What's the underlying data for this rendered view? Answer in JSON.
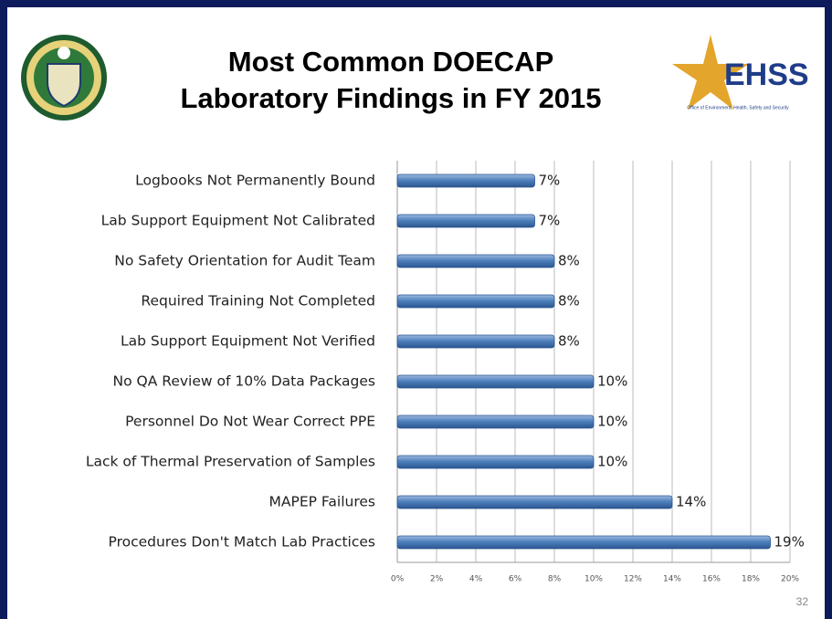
{
  "chart_data": {
    "type": "bar",
    "orientation": "horizontal",
    "title": "Most Common DOECAP Laboratory Findings in FY 2015",
    "categories": [
      "Logbooks Not Permanently Bound",
      "Lab Support Equipment Not Calibrated",
      "No Safety Orientation for Audit Team",
      "Required Training Not Completed",
      "Lab Support Equipment Not Verified",
      "No QA Review of 10% Data Packages",
      "Personnel Do Not Wear Correct PPE",
      "Lack of Thermal Preservation of Samples",
      "MAPEP Failures",
      "Procedures Don't Match Lab Practices"
    ],
    "values": [
      7,
      7,
      8,
      8,
      8,
      10,
      10,
      10,
      14,
      19
    ],
    "value_labels": [
      "7%",
      "7%",
      "8%",
      "8%",
      "8%",
      "10%",
      "10%",
      "10%",
      "14%",
      "19%"
    ],
    "color": "#4f81bd",
    "xlim": [
      0,
      20
    ],
    "xticks": [
      {
        "value": 0,
        "label": "0%"
      },
      {
        "value": 2,
        "label": "2%"
      },
      {
        "value": 4,
        "label": "4%"
      },
      {
        "value": 6,
        "label": "6%"
      },
      {
        "value": 8,
        "label": "8%"
      },
      {
        "value": 10,
        "label": "10%"
      },
      {
        "value": 12,
        "label": "12%"
      },
      {
        "value": 14,
        "label": "14%"
      },
      {
        "value": 16,
        "label": "16%"
      },
      {
        "value": 18,
        "label": "18%"
      },
      {
        "value": 20,
        "label": "20%"
      }
    ],
    "grid": true
  },
  "logo": {
    "name": "EHSS",
    "caption": "Office of Environment, Health, Safety and Security"
  },
  "page_number": "32"
}
